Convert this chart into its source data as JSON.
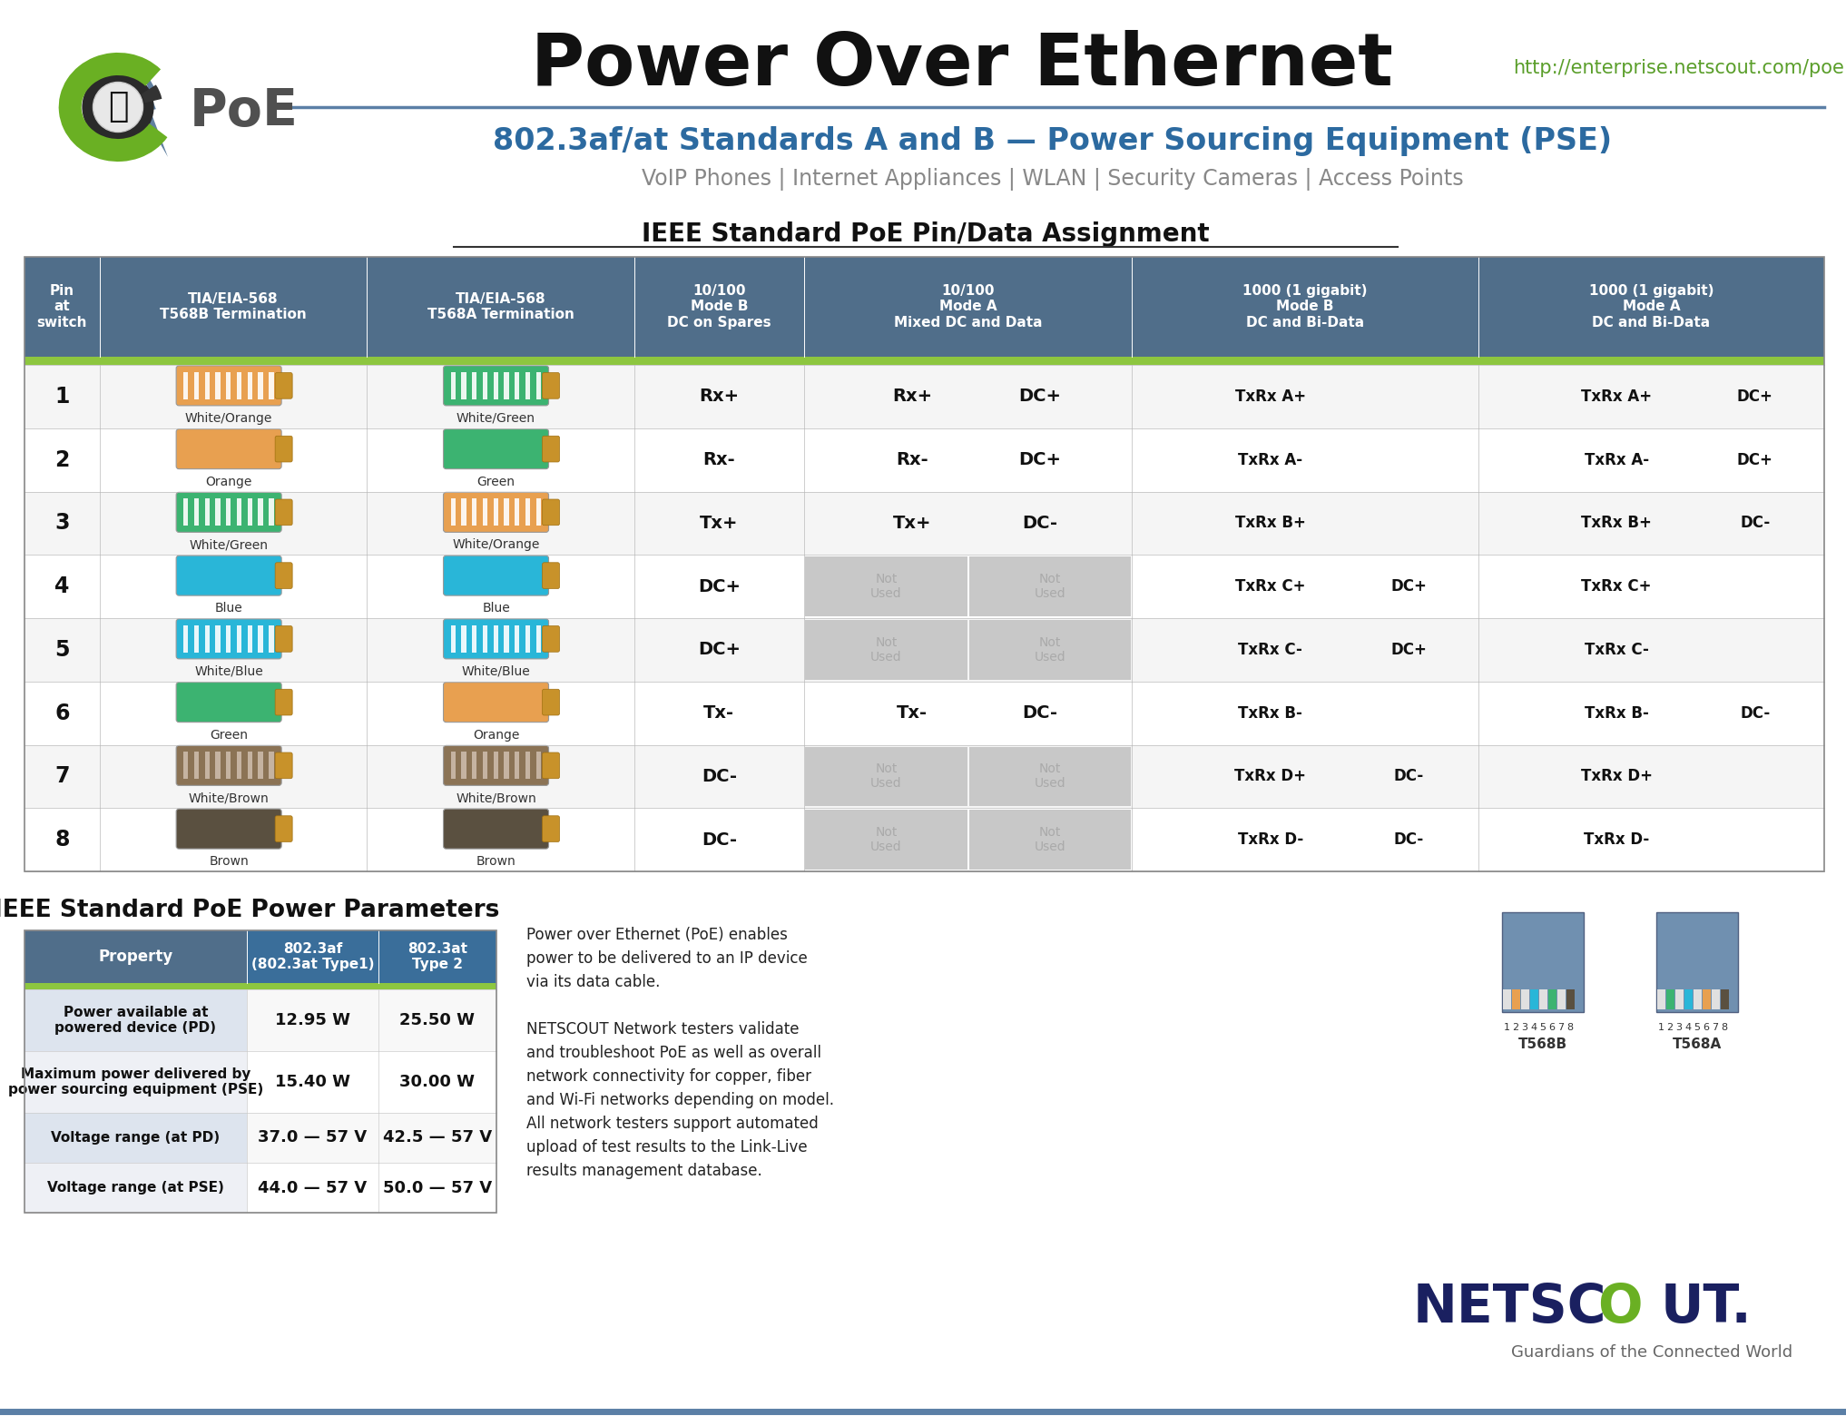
{
  "title": "Power Over Ethernet",
  "url": "http://enterprise.netscout.com/poe",
  "subtitle1": "802.3af/at Standards A and B — Power Sourcing Equipment (PSE)",
  "subtitle2": "VoIP Phones | Internet Appliances | WLAN | Security Cameras | Access Points",
  "table_title": "IEEE Standard PoE Pin/Data Assignment",
  "header_bg": "#506e8a",
  "header_green_bar": "#8dc63f",
  "not_used_bg": "#c8c8c8",
  "not_used_text": "#999999",
  "table_border": "#bbbbbb",
  "header_text": "#ffffff",
  "rows": [
    {
      "pin": "1",
      "b_color": "#e8a050",
      "b_label": "White/Orange",
      "b_striped": true,
      "b_stripe_color": "#ffffff",
      "a_color": "#3cb371",
      "a_label": "White/Green",
      "a_striped": true,
      "a_stripe_color": "#ffffff",
      "mode_b_dc": "Rx+",
      "mode_a_tx": "Rx+",
      "mode_a_dc": "DC+",
      "mode_b1000_tx": "TxRx A+",
      "mode_b1000_dc": "",
      "mode_a1000_tx": "TxRx A+",
      "mode_a1000_dc": "DC+",
      "not_used_a": false,
      "not_used_b": false,
      "spare_dc": ""
    },
    {
      "pin": "2",
      "b_color": "#e8a050",
      "b_label": "Orange",
      "b_striped": false,
      "b_stripe_color": "#ffffff",
      "a_color": "#3cb371",
      "a_label": "Green",
      "a_striped": false,
      "a_stripe_color": "#ffffff",
      "mode_b_dc": "Rx-",
      "mode_a_tx": "Rx-",
      "mode_a_dc": "DC+",
      "mode_b1000_tx": "TxRx A-",
      "mode_b1000_dc": "",
      "mode_a1000_tx": "TxRx A-",
      "mode_a1000_dc": "DC+",
      "not_used_a": false,
      "not_used_b": false,
      "spare_dc": ""
    },
    {
      "pin": "3",
      "b_color": "#3cb371",
      "b_label": "White/Green",
      "b_striped": true,
      "b_stripe_color": "#ffffff",
      "a_color": "#e8a050",
      "a_label": "White/Orange",
      "a_striped": true,
      "a_stripe_color": "#ffffff",
      "mode_b_dc": "Tx+",
      "mode_a_tx": "Tx+",
      "mode_a_dc": "DC-",
      "mode_b1000_tx": "TxRx B+",
      "mode_b1000_dc": "",
      "mode_a1000_tx": "TxRx B+",
      "mode_a1000_dc": "DC-",
      "not_used_a": false,
      "not_used_b": false,
      "spare_dc": ""
    },
    {
      "pin": "4",
      "b_color": "#29b6d8",
      "b_label": "Blue",
      "b_striped": false,
      "b_stripe_color": "#ffffff",
      "a_color": "#29b6d8",
      "a_label": "Blue",
      "a_striped": false,
      "a_stripe_color": "#ffffff",
      "mode_b_dc": "",
      "mode_a_tx": "",
      "mode_a_dc": "",
      "mode_b1000_tx": "TxRx C+",
      "mode_b1000_dc": "DC+",
      "mode_a1000_tx": "TxRx C+",
      "mode_a1000_dc": "",
      "not_used_a": true,
      "not_used_b": true,
      "spare_dc": "DC+"
    },
    {
      "pin": "5",
      "b_color": "#29b6d8",
      "b_label": "White/Blue",
      "b_striped": true,
      "b_stripe_color": "#ffffff",
      "a_color": "#29b6d8",
      "a_label": "White/Blue",
      "a_striped": true,
      "a_stripe_color": "#ffffff",
      "mode_b_dc": "",
      "mode_a_tx": "",
      "mode_a_dc": "",
      "mode_b1000_tx": "TxRx C-",
      "mode_b1000_dc": "DC+",
      "mode_a1000_tx": "TxRx C-",
      "mode_a1000_dc": "",
      "not_used_a": true,
      "not_used_b": true,
      "spare_dc": "DC+"
    },
    {
      "pin": "6",
      "b_color": "#3cb371",
      "b_label": "Green",
      "b_striped": false,
      "b_stripe_color": "#ffffff",
      "a_color": "#e8a050",
      "a_label": "Orange",
      "a_striped": false,
      "a_stripe_color": "#ffffff",
      "mode_b_dc": "Tx-",
      "mode_a_tx": "Tx-",
      "mode_a_dc": "DC-",
      "mode_b1000_tx": "TxRx B-",
      "mode_b1000_dc": "",
      "mode_a1000_tx": "TxRx B-",
      "mode_a1000_dc": "DC-",
      "not_used_a": false,
      "not_used_b": false,
      "spare_dc": ""
    },
    {
      "pin": "7",
      "b_color": "#8B7355",
      "b_label": "White/Brown",
      "b_striped": true,
      "b_stripe_color": "#ccbbaa",
      "a_color": "#8B7355",
      "a_label": "White/Brown",
      "a_striped": true,
      "a_stripe_color": "#ccbbaa",
      "mode_b_dc": "",
      "mode_a_tx": "",
      "mode_a_dc": "",
      "mode_b1000_tx": "TxRx D+",
      "mode_b1000_dc": "DC-",
      "mode_a1000_tx": "TxRx D+",
      "mode_a1000_dc": "",
      "not_used_a": true,
      "not_used_b": true,
      "spare_dc": "DC-"
    },
    {
      "pin": "8",
      "b_color": "#5a5040",
      "b_label": "Brown",
      "b_striped": false,
      "b_stripe_color": "#ffffff",
      "a_color": "#5a5040",
      "a_label": "Brown",
      "a_striped": false,
      "a_stripe_color": "#ffffff",
      "mode_b_dc": "",
      "mode_a_tx": "",
      "mode_a_dc": "",
      "mode_b1000_tx": "TxRx D-",
      "mode_b1000_dc": "DC-",
      "mode_a1000_tx": "TxRx D-",
      "mode_a1000_dc": "",
      "not_used_a": true,
      "not_used_b": true,
      "spare_dc": "DC-"
    }
  ],
  "power_table_title": "IEEE Standard PoE Power Parameters",
  "power_col1": "Property",
  "power_col2": "802.3af\n(802.3at Type1)",
  "power_col3": "802.3at\nType 2",
  "power_rows": [
    {
      "property": "Power available at\npowered device (PD)",
      "af": "12.95 W",
      "at": "25.50 W"
    },
    {
      "property": "Maximum power delivered by\npower sourcing equipment (PSE)",
      "af": "15.40 W",
      "at": "30.00 W"
    },
    {
      "property": "Voltage range (at PD)",
      "af": "37.0 — 57 V",
      "at": "42.5 — 57 V"
    },
    {
      "property": "Voltage range (at PSE)",
      "af": "44.0 — 57 V",
      "at": "50.0 — 57 V"
    }
  ],
  "description": "Power over Ethernet (PoE) enables\npower to be delivered to an IP device\nvia its data cable.\n\nNETSCOUT Network testers validate\nand troubleshoot PoE as well as overall\nnetwork connectivity for copper, fiber\nand Wi-Fi networks depending on model.\nAll network testers support automated\nupload of test results to the Link-Live\nresults management database.",
  "netscout_text": "NETSC",
  "netscout_o": "O",
  "netscout_text2": "UT.",
  "netscout_sub": "Guardians of the Connected World",
  "bg_color": "#ffffff"
}
